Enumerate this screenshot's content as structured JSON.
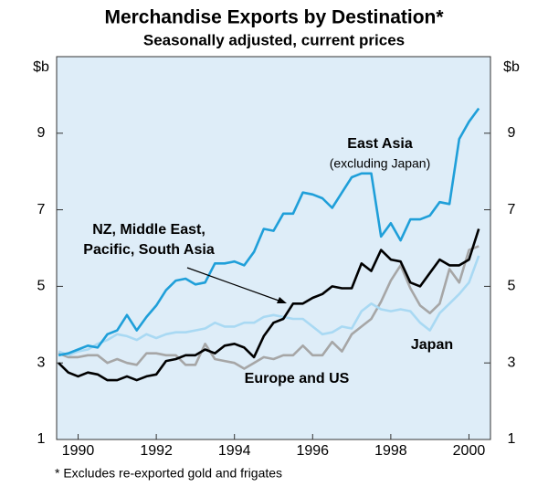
{
  "chart_data": {
    "type": "line",
    "title": "Merchandise Exports by Destination*",
    "subtitle": "Seasonally adjusted, current prices",
    "y_unit": "$b",
    "footnote": "* Excludes re-exported gold and frigates",
    "x": [
      1989.5,
      1989.75,
      1990,
      1990.25,
      1990.5,
      1990.75,
      1991,
      1991.25,
      1991.5,
      1991.75,
      1992,
      1992.25,
      1992.5,
      1992.75,
      1993,
      1993.25,
      1993.5,
      1993.75,
      1994,
      1994.25,
      1994.5,
      1994.75,
      1995,
      1995.25,
      1995.5,
      1995.75,
      1996,
      1996.25,
      1996.5,
      1996.75,
      1997,
      1997.25,
      1997.5,
      1997.75,
      1998,
      1998.25,
      1998.5,
      1998.75,
      1999,
      1999.25,
      1999.5,
      1999.75,
      2000,
      2000.25
    ],
    "xlim": [
      1989.45,
      2000.55
    ],
    "xticks": [
      1990,
      1992,
      1994,
      1996,
      1998,
      2000
    ],
    "ylim": [
      1,
      11
    ],
    "yticks": [
      1,
      3,
      5,
      7,
      9
    ],
    "grid": false,
    "series": [
      {
        "name": "East Asia",
        "note": "(excluding Japan)",
        "color": "#1f9fd9",
        "values": [
          3.2,
          3.25,
          3.35,
          3.45,
          3.4,
          3.75,
          3.85,
          4.25,
          3.85,
          4.2,
          4.5,
          4.9,
          5.15,
          5.2,
          5.05,
          5.1,
          5.6,
          5.6,
          5.65,
          5.55,
          5.9,
          6.5,
          6.45,
          6.9,
          6.9,
          7.45,
          7.4,
          7.3,
          7.05,
          7.45,
          7.85,
          7.95,
          7.95,
          6.3,
          6.65,
          6.2,
          6.75,
          6.75,
          6.85,
          7.2,
          7.15,
          8.85,
          9.3,
          9.65
        ]
      },
      {
        "name": "Japan",
        "color": "#a9d9f3",
        "values": [
          3.3,
          3.2,
          3.3,
          3.35,
          3.5,
          3.6,
          3.75,
          3.7,
          3.6,
          3.75,
          3.65,
          3.75,
          3.8,
          3.8,
          3.85,
          3.9,
          4.05,
          3.95,
          3.95,
          4.05,
          4.05,
          4.2,
          4.25,
          4.2,
          4.15,
          4.15,
          3.95,
          3.75,
          3.8,
          3.95,
          3.9,
          4.35,
          4.55,
          4.4,
          4.35,
          4.4,
          4.35,
          4.05,
          3.85,
          4.3,
          4.55,
          4.8,
          5.1,
          5.8
        ]
      },
      {
        "name": "Europe and US",
        "color": "#a6a6a6",
        "values": [
          3.25,
          3.15,
          3.15,
          3.2,
          3.2,
          3.0,
          3.1,
          3.0,
          2.95,
          3.25,
          3.25,
          3.2,
          3.2,
          2.95,
          2.95,
          3.5,
          3.1,
          3.05,
          3.0,
          2.85,
          3.0,
          3.15,
          3.1,
          3.2,
          3.2,
          3.45,
          3.2,
          3.2,
          3.55,
          3.3,
          3.75,
          3.95,
          4.15,
          4.6,
          5.15,
          5.55,
          4.95,
          4.5,
          4.3,
          4.55,
          5.45,
          5.1,
          5.95,
          6.05
        ]
      },
      {
        "name": [
          "NZ, Middle East,",
          "Pacific, South Asia"
        ],
        "color": "#000000",
        "values": [
          3.0,
          2.75,
          2.65,
          2.75,
          2.7,
          2.55,
          2.55,
          2.65,
          2.55,
          2.65,
          2.7,
          3.05,
          3.1,
          3.2,
          3.2,
          3.35,
          3.25,
          3.45,
          3.5,
          3.4,
          3.15,
          3.7,
          4.05,
          4.15,
          4.55,
          4.55,
          4.7,
          4.8,
          5.0,
          4.95,
          4.95,
          5.6,
          5.4,
          5.95,
          5.7,
          5.65,
          5.1,
          5.0,
          5.35,
          5.7,
          5.55,
          5.55,
          5.7,
          6.5
        ]
      }
    ]
  }
}
